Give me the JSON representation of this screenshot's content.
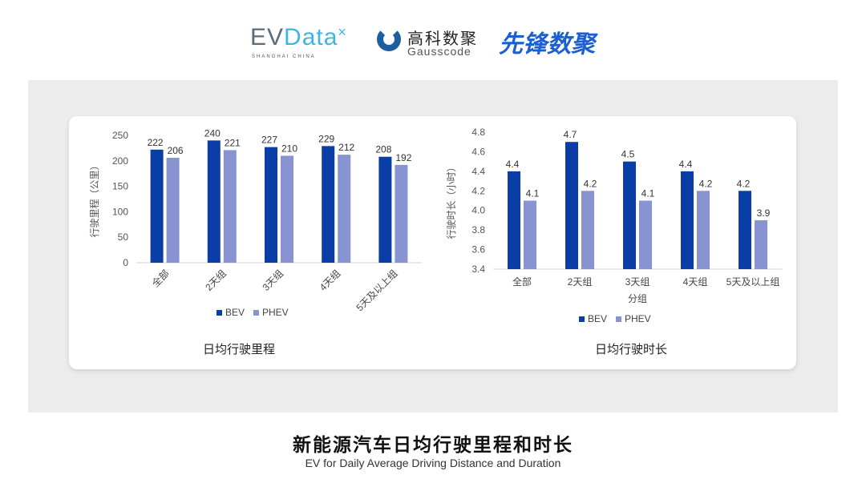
{
  "logos": {
    "evdata_a": "EV",
    "evdata_b": "Data",
    "evdata_sub": "SHANGHAI CHINA",
    "gauss_cn": "高科数聚",
    "gauss_en": "Gausscode",
    "xianfeng": "先锋数聚"
  },
  "colors": {
    "BEV": "#0b3da6",
    "PHEV": "#8894d2",
    "panel": "#ececec"
  },
  "chart_data": [
    {
      "type": "bar",
      "title": "日均行驶里程",
      "ylabel": "行驶里程（公里）",
      "xlabel": "",
      "ylim": [
        0,
        250
      ],
      "yticks": [
        0,
        50,
        100,
        150,
        200,
        250
      ],
      "categories": [
        "全部",
        "2天组",
        "3天组",
        "4天组",
        "5天及以上组"
      ],
      "series": [
        {
          "name": "BEV",
          "values": [
            222,
            240,
            227,
            229,
            208
          ]
        },
        {
          "name": "PHEV",
          "values": [
            206,
            221,
            210,
            212,
            192
          ]
        }
      ],
      "legend": "bottom",
      "grid": false
    },
    {
      "type": "bar",
      "title": "日均行驶时长",
      "ylabel": "行驶时长（小时）",
      "xlabel": "分组",
      "ylim": [
        3.4,
        4.8
      ],
      "yticks": [
        "3.4",
        "3.6",
        "3.8",
        "4.0",
        "4.2",
        "4.4",
        "4.6",
        "4.8"
      ],
      "categories": [
        "全部",
        "2天组",
        "3天组",
        "4天组",
        "5天及以上组"
      ],
      "series": [
        {
          "name": "BEV",
          "values": [
            4.4,
            4.7,
            4.5,
            4.4,
            4.2
          ]
        },
        {
          "name": "PHEV",
          "values": [
            4.1,
            4.2,
            4.1,
            4.2,
            3.9
          ]
        }
      ],
      "legend": "bottom",
      "grid": false
    }
  ],
  "footer": {
    "title": "新能源汽车日均行驶里程和时长",
    "subtitle": "EV for Daily Average Driving Distance and Duration"
  }
}
